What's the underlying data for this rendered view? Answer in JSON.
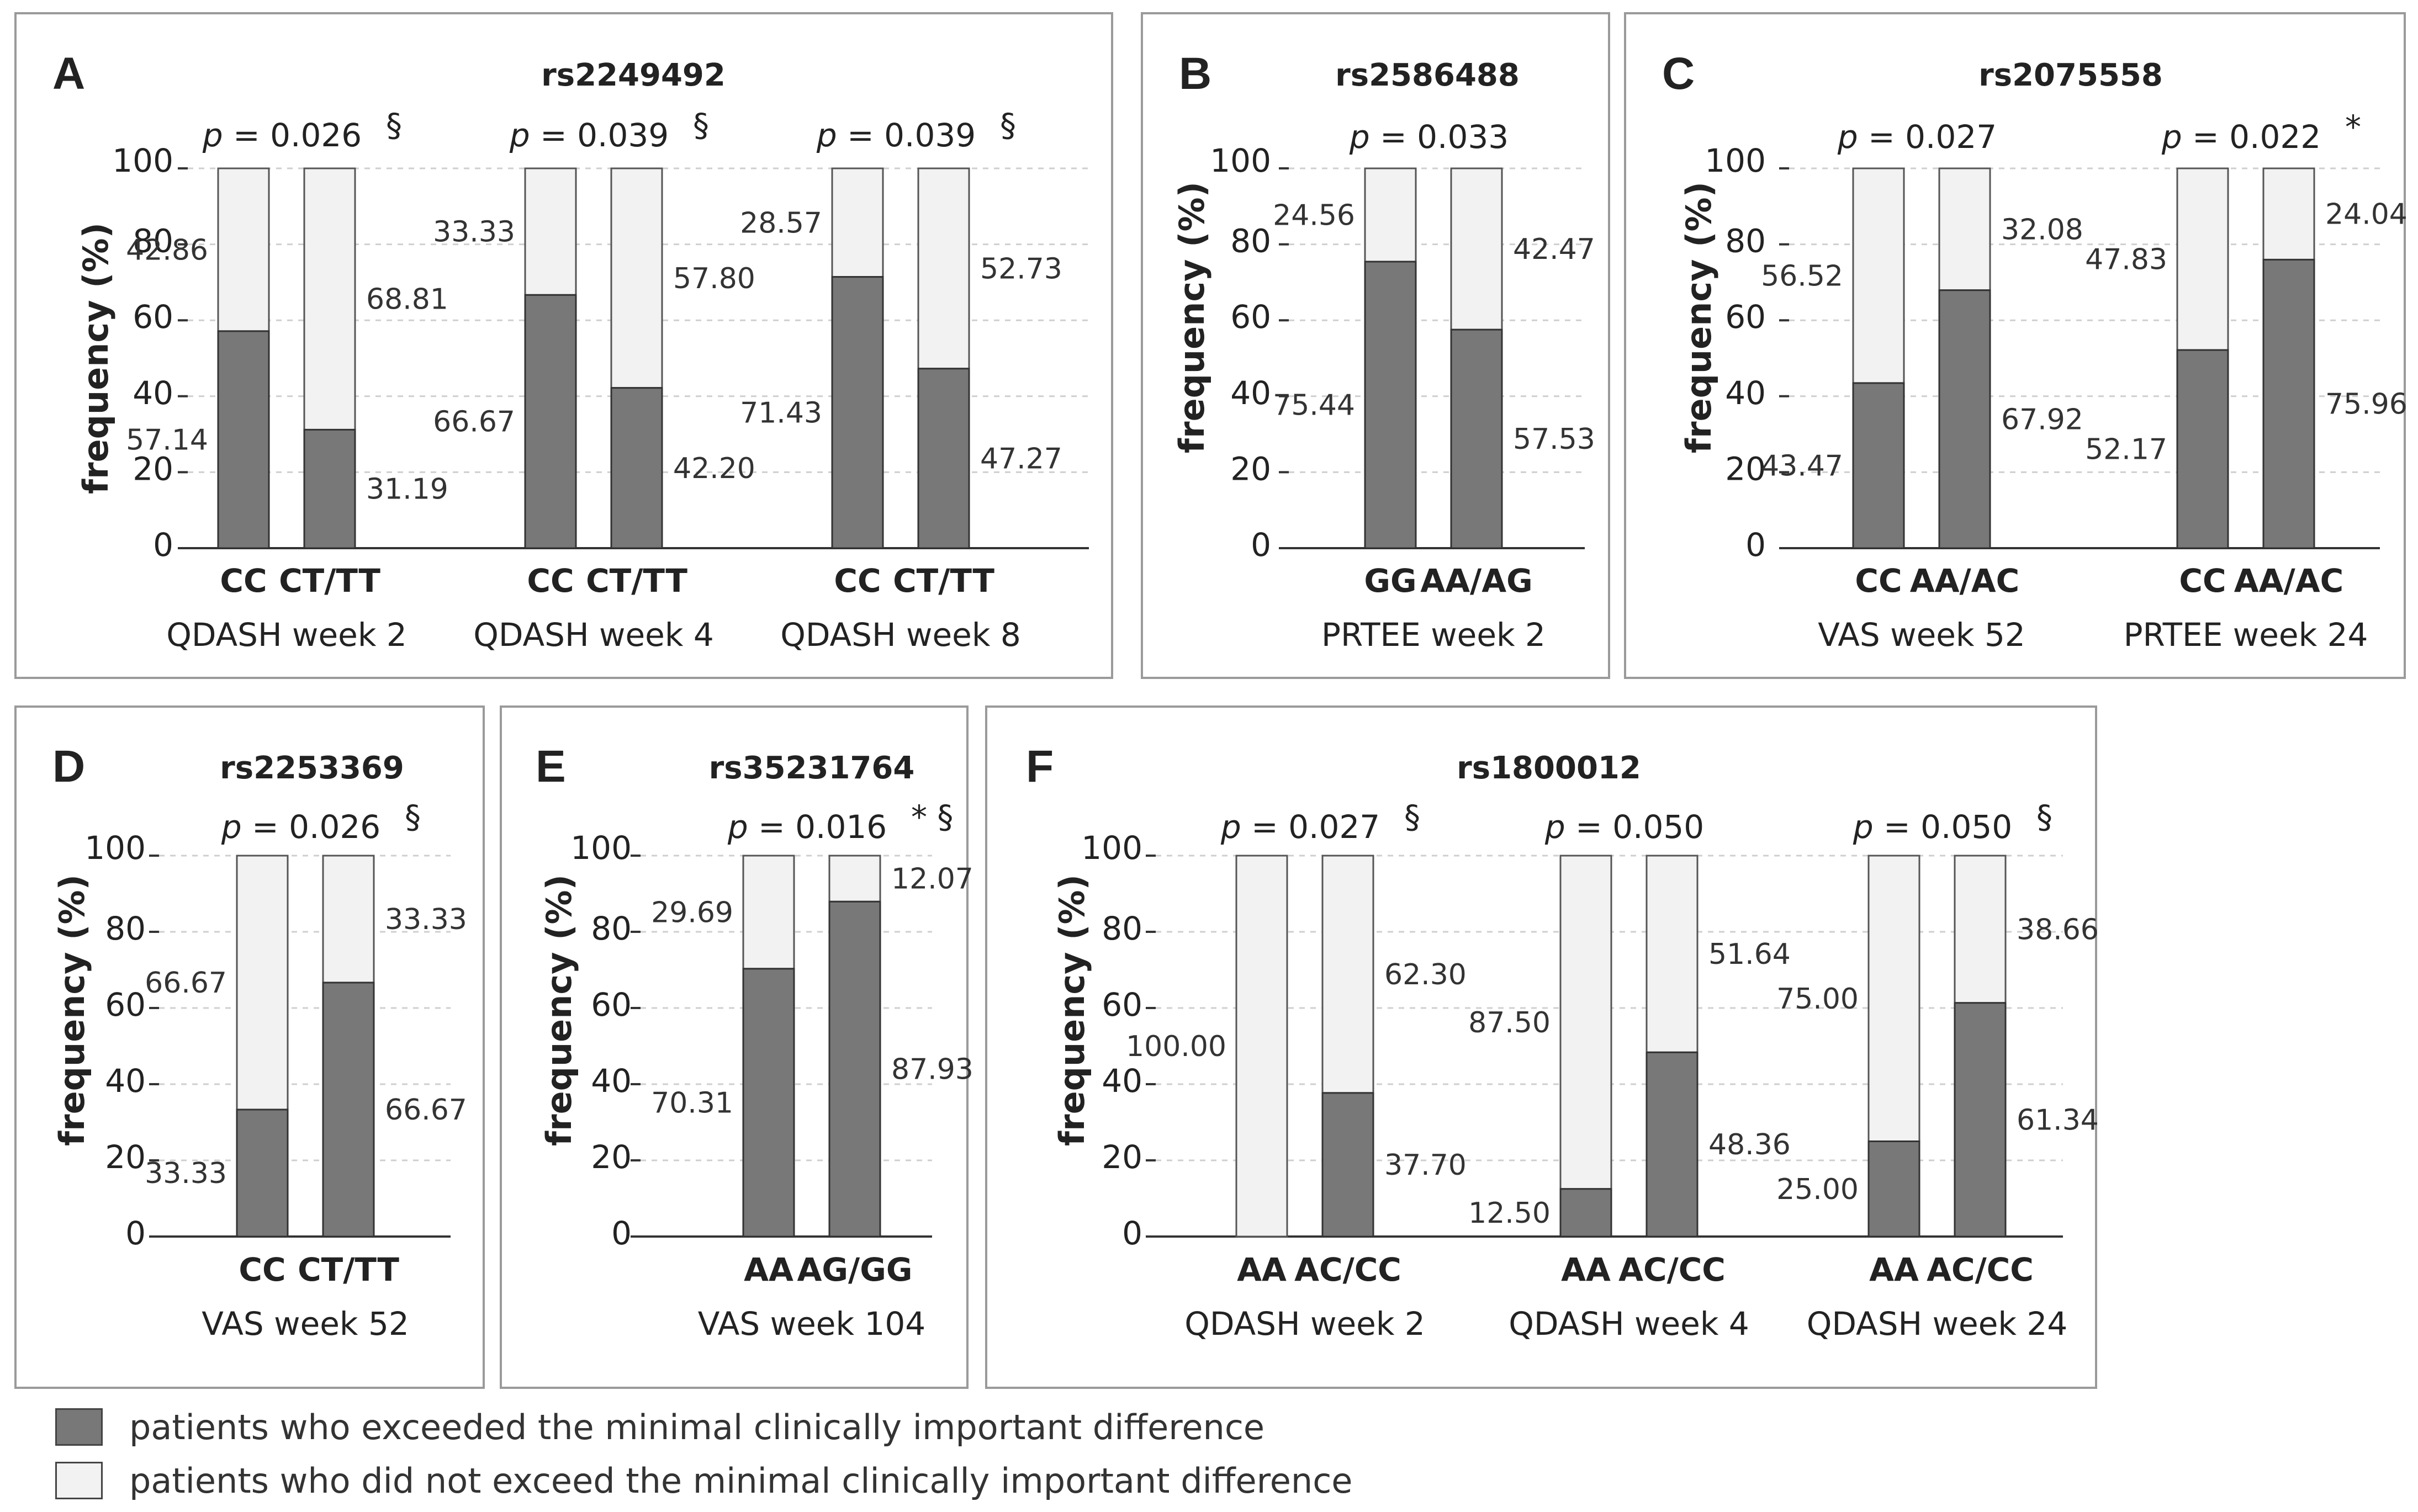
{
  "colors": {
    "exceeded": "#787878",
    "not_exceeded": "#f2f2f2",
    "text": "#222222",
    "label": "#333333",
    "panel_border": "#9a9a9a"
  },
  "y_axis": {
    "label": "frequency (%)",
    "ticks": [
      "0",
      "20",
      "40",
      "60",
      "80",
      "100"
    ],
    "range": [
      0,
      100
    ]
  },
  "legend": [
    {
      "key": "exceeded",
      "label": "patients who exceeded the minimal clinically important difference"
    },
    {
      "key": "not_exceeded",
      "label": "patients who did not exceed the minimal clinically important difference"
    }
  ],
  "chart_data": [
    {
      "type": "bar",
      "panel": "A",
      "title": "rs2249492",
      "groups": [
        {
          "p": "0.026",
          "mark": "§",
          "outcome": "QDASH week 2",
          "bars": [
            {
              "genotype": "CC",
              "exceeded": 57.14,
              "exceeded_label": "57.14",
              "not_exceeded": 42.86,
              "not_exceeded_label": "42.86"
            },
            {
              "genotype": "CT/TT",
              "exceeded": 31.19,
              "exceeded_label": "31.19",
              "not_exceeded": 68.81,
              "not_exceeded_label": "68.81"
            }
          ]
        },
        {
          "p": "0.039",
          "mark": "§",
          "outcome": "QDASH week 4",
          "bars": [
            {
              "genotype": "CC",
              "exceeded": 66.67,
              "exceeded_label": "66.67",
              "not_exceeded": 33.33,
              "not_exceeded_label": "33.33"
            },
            {
              "genotype": "CT/TT",
              "exceeded": 42.2,
              "exceeded_label": "42.20",
              "not_exceeded": 57.8,
              "not_exceeded_label": "57.80"
            }
          ]
        },
        {
          "p": "0.039",
          "mark": "§",
          "outcome": "QDASH week 8",
          "bars": [
            {
              "genotype": "CC",
              "exceeded": 71.43,
              "exceeded_label": "71.43",
              "not_exceeded": 28.57,
              "not_exceeded_label": "28.57"
            },
            {
              "genotype": "CT/TT",
              "exceeded": 47.27,
              "exceeded_label": "47.27",
              "not_exceeded": 52.73,
              "not_exceeded_label": "52.73"
            }
          ]
        }
      ]
    },
    {
      "type": "bar",
      "panel": "B",
      "title": "rs2586488",
      "groups": [
        {
          "p": "0.033",
          "mark": "",
          "outcome": "PRTEE week 2",
          "bars": [
            {
              "genotype": "GG",
              "exceeded": 75.44,
              "exceeded_label": "75.44",
              "not_exceeded": 24.56,
              "not_exceeded_label": "24.56"
            },
            {
              "genotype": "AA/AG",
              "exceeded": 57.53,
              "exceeded_label": "57.53",
              "not_exceeded": 42.47,
              "not_exceeded_label": "42.47"
            }
          ]
        }
      ]
    },
    {
      "type": "bar",
      "panel": "C",
      "title": "rs2075558",
      "groups": [
        {
          "p": "0.027",
          "mark": "",
          "outcome": "VAS week 52",
          "bars": [
            {
              "genotype": "CC",
              "exceeded": 43.47,
              "exceeded_label": "43.47",
              "not_exceeded": 56.52,
              "not_exceeded_label": "56.52"
            },
            {
              "genotype": "AA/AC",
              "exceeded": 67.92,
              "exceeded_label": "67.92",
              "not_exceeded": 32.08,
              "not_exceeded_label": "32.08"
            }
          ]
        },
        {
          "p": "0.022",
          "mark": "*",
          "outcome": "PRTEE week 24",
          "bars": [
            {
              "genotype": "CC",
              "exceeded": 52.17,
              "exceeded_label": "52.17",
              "not_exceeded": 47.83,
              "not_exceeded_label": "47.83"
            },
            {
              "genotype": "AA/AC",
              "exceeded": 75.96,
              "exceeded_label": "75.96",
              "not_exceeded": 24.04,
              "not_exceeded_label": "24.04"
            }
          ]
        }
      ]
    },
    {
      "type": "bar",
      "panel": "D",
      "title": "rs2253369",
      "groups": [
        {
          "p": "0.026",
          "mark": "§",
          "outcome": "VAS week 52",
          "bars": [
            {
              "genotype": "CC",
              "exceeded": 33.33,
              "exceeded_label": "33.33",
              "not_exceeded": 66.67,
              "not_exceeded_label": "66.67"
            },
            {
              "genotype": "CT/TT",
              "exceeded": 66.67,
              "exceeded_label": "66.67",
              "not_exceeded": 33.33,
              "not_exceeded_label": "33.33"
            }
          ]
        }
      ]
    },
    {
      "type": "bar",
      "panel": "E",
      "title": "rs35231764",
      "groups": [
        {
          "p": "0.016",
          "mark": "* §",
          "outcome": "VAS week 104",
          "bars": [
            {
              "genotype": "AA",
              "exceeded": 70.31,
              "exceeded_label": "70.31",
              "not_exceeded": 29.69,
              "not_exceeded_label": "29.69"
            },
            {
              "genotype": "AG/GG",
              "exceeded": 87.93,
              "exceeded_label": "87.93",
              "not_exceeded": 12.07,
              "not_exceeded_label": "12.07"
            }
          ]
        }
      ]
    },
    {
      "type": "bar",
      "panel": "F",
      "title": "rs1800012",
      "groups": [
        {
          "p": "0.027",
          "mark": "§",
          "outcome": "QDASH week 2",
          "bars": [
            {
              "genotype": "AA",
              "exceeded": 0,
              "exceeded_label": "",
              "not_exceeded": 100.0,
              "not_exceeded_label": "100.00"
            },
            {
              "genotype": "AC/CC",
              "exceeded": 37.7,
              "exceeded_label": "37.70",
              "not_exceeded": 62.3,
              "not_exceeded_label": "62.30"
            }
          ]
        },
        {
          "p": "0.050",
          "mark": "",
          "outcome": "QDASH week 4",
          "bars": [
            {
              "genotype": "AA",
              "exceeded": 12.5,
              "exceeded_label": "12.50",
              "not_exceeded": 87.5,
              "not_exceeded_label": "87.50"
            },
            {
              "genotype": "AC/CC",
              "exceeded": 48.36,
              "exceeded_label": "48.36",
              "not_exceeded": 51.64,
              "not_exceeded_label": "51.64"
            }
          ]
        },
        {
          "p": "0.050",
          "mark": "§",
          "outcome": "QDASH week 24",
          "bars": [
            {
              "genotype": "AA",
              "exceeded": 25.0,
              "exceeded_label": "25.00",
              "not_exceeded": 75.0,
              "not_exceeded_label": "75.00"
            },
            {
              "genotype": "AC/CC",
              "exceeded": 61.34,
              "exceeded_label": "61.34",
              "not_exceeded": 38.66,
              "not_exceeded_label": "38.66"
            }
          ]
        }
      ]
    }
  ]
}
